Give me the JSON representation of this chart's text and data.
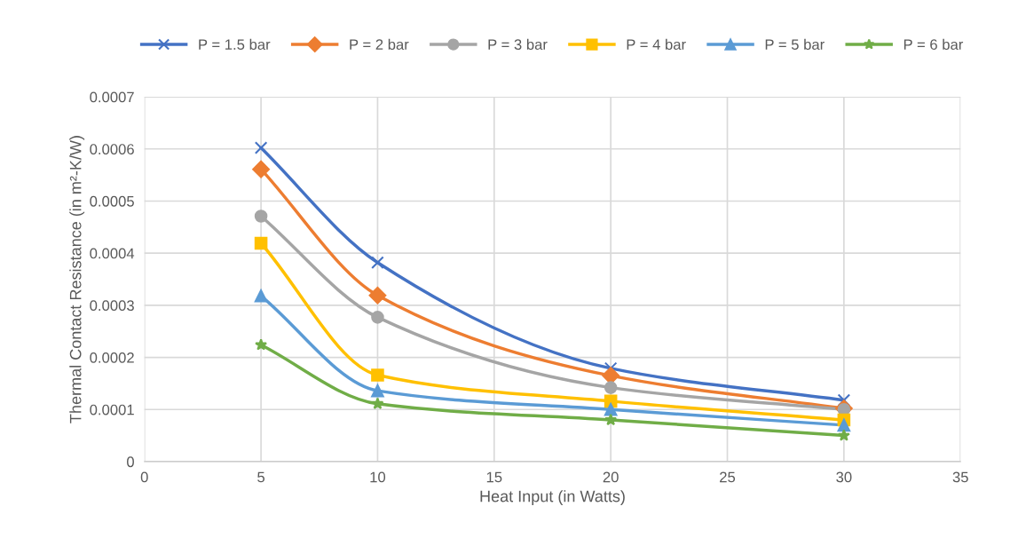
{
  "chart_data": {
    "type": "line",
    "xlabel": "Heat Input (in Watts)",
    "ylabel": "Thermal Contact Resistance (in m²-K/W)",
    "x": [
      5,
      10,
      20,
      30
    ],
    "series": [
      {
        "name": "P = 1.5 bar",
        "color": "#4472c4",
        "marker": "cross",
        "values": [
          0.000602,
          0.000382,
          0.000179,
          0.000118
        ]
      },
      {
        "name": "P = 2 bar",
        "color": "#ed7d31",
        "marker": "diamond",
        "values": [
          0.000561,
          0.000319,
          0.000165,
          0.000102
        ]
      },
      {
        "name": "P = 3 bar",
        "color": "#a5a5a5",
        "marker": "circle",
        "values": [
          0.000471,
          0.000277,
          0.000142,
          0.0001
        ]
      },
      {
        "name": "P = 4 bar",
        "color": "#ffc000",
        "marker": "square",
        "values": [
          0.000419,
          0.000166,
          0.000116,
          8e-05
        ]
      },
      {
        "name": "P = 5 bar",
        "color": "#5b9bd5",
        "marker": "triangle",
        "values": [
          0.000318,
          0.000136,
          0.0001,
          7e-05
        ]
      },
      {
        "name": "P = 6 bar",
        "color": "#70ad47",
        "marker": "star",
        "values": [
          0.000224,
          0.000111,
          8e-05,
          5e-05
        ]
      }
    ],
    "xlim": [
      0,
      35
    ],
    "xticks": [
      0,
      5,
      10,
      15,
      20,
      25,
      30,
      35
    ],
    "ylim": [
      0,
      0.0007
    ],
    "yticks": [
      0,
      0.0001,
      0.0002,
      0.0003,
      0.0004,
      0.0005,
      0.0006,
      0.0007
    ],
    "grid": true,
    "legend": "top",
    "line_style": "solid"
  }
}
